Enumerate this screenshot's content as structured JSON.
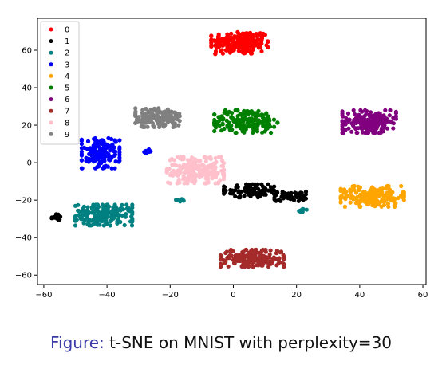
{
  "caption": {
    "label": "Figure:",
    "text": "t-SNE on MNIST with perplexity=30"
  },
  "chart_data": {
    "type": "scatter",
    "title": "",
    "xlabel": "",
    "ylabel": "",
    "xlim": [
      -62,
      61
    ],
    "ylim": [
      -65,
      77
    ],
    "xticks": [
      -60,
      -40,
      -20,
      0,
      20,
      40,
      60
    ],
    "yticks": [
      -60,
      -40,
      -20,
      0,
      20,
      40,
      60
    ],
    "grid": false,
    "legend_position": "top-left",
    "series": [
      {
        "name": "0",
        "color": "#ff0000",
        "clusters": [
          {
            "center": [
              2,
              64
            ],
            "spread": [
              9,
              6
            ],
            "count": 220
          }
        ]
      },
      {
        "name": "1",
        "color": "#000000",
        "clusters": [
          {
            "center": [
              5,
              -15
            ],
            "spread": [
              8,
              3.5
            ],
            "count": 100
          },
          {
            "center": [
              18,
              -18
            ],
            "spread": [
              5,
              2.5
            ],
            "count": 55
          },
          {
            "center": [
              -56,
              -29
            ],
            "spread": [
              1.5,
              1.5
            ],
            "count": 22
          }
        ]
      },
      {
        "name": "2",
        "color": "#008080",
        "clusters": [
          {
            "center": [
              -41,
              -28
            ],
            "spread": [
              9,
              5.5
            ],
            "count": 190
          },
          {
            "center": [
              -17,
              -20
            ],
            "spread": [
              1.5,
              0.7
            ],
            "count": 8
          },
          {
            "center": [
              22,
              -25
            ],
            "spread": [
              1.2,
              1.5
            ],
            "count": 10
          }
        ]
      },
      {
        "name": "3",
        "color": "#0000ff",
        "clusters": [
          {
            "center": [
              -42,
              5
            ],
            "spread": [
              6,
              8
            ],
            "count": 150
          },
          {
            "center": [
              -27,
              6
            ],
            "spread": [
              1.2,
              1.2
            ],
            "count": 10
          }
        ]
      },
      {
        "name": "4",
        "color": "#ffa500",
        "clusters": [
          {
            "center": [
              44,
              -18
            ],
            "spread": [
              10,
              5.5
            ],
            "count": 180
          }
        ]
      },
      {
        "name": "5",
        "color": "#008000",
        "clusters": [
          {
            "center": [
              4,
              22
            ],
            "spread": [
              10,
              6
            ],
            "count": 190
          }
        ]
      },
      {
        "name": "6",
        "color": "#800080",
        "clusters": [
          {
            "center": [
              43,
              22
            ],
            "spread": [
              8.5,
              6
            ],
            "count": 190
          }
        ]
      },
      {
        "name": "7",
        "color": "#a52a2a",
        "clusters": [
          {
            "center": [
              6,
              -51
            ],
            "spread": [
              10,
              4.5
            ],
            "count": 210
          }
        ]
      },
      {
        "name": "8",
        "color": "#ffc0cb",
        "clusters": [
          {
            "center": [
              -12,
              -4
            ],
            "spread": [
              9,
              7
            ],
            "count": 220
          }
        ]
      },
      {
        "name": "9",
        "color": "#808080",
        "clusters": [
          {
            "center": [
              -24,
              24
            ],
            "spread": [
              7,
              5
            ],
            "count": 170
          }
        ]
      }
    ]
  }
}
